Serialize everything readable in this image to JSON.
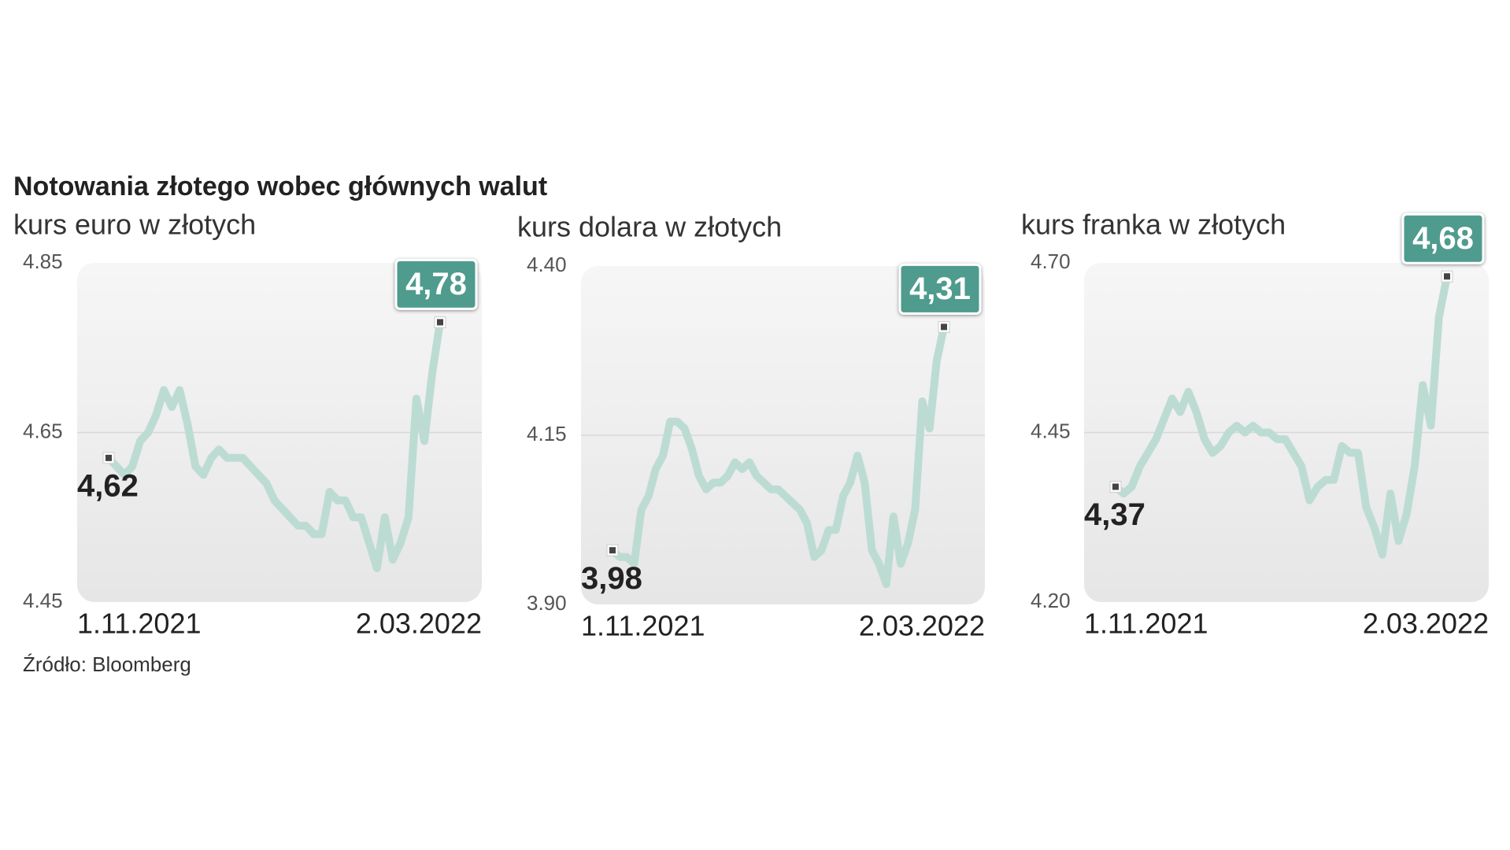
{
  "title": "Notowania złotego wobec głównych walut",
  "source": "Źródło: Bloomberg",
  "chart_data": [
    {
      "type": "line",
      "title": "kurs euro w złotych",
      "categories": [
        "1.11.2021",
        null,
        null,
        null,
        null,
        null,
        null,
        null,
        null,
        null,
        null,
        null,
        null,
        null,
        null,
        null,
        null,
        null,
        null,
        null,
        null,
        null,
        null,
        null,
        null,
        null,
        null,
        null,
        null,
        null,
        null,
        null,
        null,
        null,
        null,
        null,
        null,
        null,
        null,
        null,
        null,
        null,
        "2.03.2022"
      ],
      "values": [
        4.62,
        4.61,
        4.6,
        4.61,
        4.64,
        4.65,
        4.67,
        4.7,
        4.68,
        4.7,
        4.66,
        4.61,
        4.6,
        4.62,
        4.63,
        4.62,
        4.62,
        4.62,
        4.61,
        4.6,
        4.59,
        4.57,
        4.56,
        4.55,
        4.54,
        4.54,
        4.53,
        4.53,
        4.58,
        4.57,
        4.57,
        4.55,
        4.55,
        4.52,
        4.49,
        4.55,
        4.5,
        4.52,
        4.55,
        4.69,
        4.64,
        4.72,
        4.78
      ],
      "value_labels": [
        "4,62",
        null,
        null,
        null,
        null,
        null,
        null,
        null,
        null,
        null,
        null,
        null,
        null,
        null,
        null,
        null,
        null,
        null,
        null,
        null,
        null,
        null,
        null,
        null,
        null,
        null,
        null,
        null,
        null,
        null,
        null,
        null,
        null,
        null,
        null,
        null,
        null,
        null,
        null,
        null,
        null,
        null,
        "4,78"
      ],
      "color": "#bcdcd3",
      "ylim": [
        4.45,
        4.85
      ],
      "yticks": [
        4.85,
        4.65,
        4.45
      ],
      "grid": true
    },
    {
      "type": "line",
      "title": "kurs dolara w złotych",
      "categories": [
        "1.11.2021",
        null,
        null,
        null,
        null,
        null,
        null,
        null,
        null,
        null,
        null,
        null,
        null,
        null,
        null,
        null,
        null,
        null,
        null,
        null,
        null,
        null,
        null,
        null,
        null,
        null,
        null,
        null,
        null,
        null,
        null,
        null,
        null,
        null,
        null,
        null,
        null,
        null,
        null,
        null,
        null,
        null,
        null,
        null,
        null,
        null,
        "2.03.2022"
      ],
      "values": [
        3.98,
        3.97,
        3.97,
        3.96,
        4.04,
        4.06,
        4.1,
        4.12,
        4.17,
        4.17,
        4.16,
        4.13,
        4.09,
        4.07,
        4.08,
        4.08,
        4.09,
        4.11,
        4.1,
        4.11,
        4.09,
        4.08,
        4.07,
        4.07,
        4.06,
        4.05,
        4.04,
        4.02,
        3.97,
        3.98,
        4.01,
        4.01,
        4.06,
        4.08,
        4.12,
        4.08,
        3.98,
        3.96,
        3.93,
        4.03,
        3.96,
        3.99,
        4.04,
        4.2,
        4.16,
        4.26,
        4.31
      ],
      "value_labels": [
        "3,98",
        null,
        null,
        null,
        null,
        null,
        null,
        null,
        null,
        null,
        null,
        null,
        null,
        null,
        null,
        null,
        null,
        null,
        null,
        null,
        null,
        null,
        null,
        null,
        null,
        null,
        null,
        null,
        null,
        null,
        null,
        null,
        null,
        null,
        null,
        null,
        null,
        null,
        null,
        null,
        null,
        null,
        null,
        null,
        null,
        null,
        "4,31"
      ],
      "color": "#bcdcd3",
      "ylim": [
        3.9,
        4.4
      ],
      "yticks": [
        {
          "value": 4.4,
          "label": "4.40"
        },
        4.15,
        {
          "value": 3.9,
          "label": "3.90"
        }
      ],
      "grid": true
    },
    {
      "type": "line",
      "title": "kurs franka w złotych",
      "categories": [
        "1.11.2021",
        null,
        null,
        null,
        null,
        null,
        null,
        null,
        null,
        null,
        null,
        null,
        null,
        null,
        null,
        null,
        null,
        null,
        null,
        null,
        null,
        null,
        null,
        null,
        null,
        null,
        null,
        null,
        null,
        null,
        null,
        null,
        null,
        null,
        null,
        null,
        null,
        null,
        null,
        null,
        null,
        "2.03.2022"
      ],
      "values": [
        4.37,
        4.36,
        4.37,
        4.4,
        4.42,
        4.44,
        4.47,
        4.5,
        4.48,
        4.51,
        4.48,
        4.44,
        4.42,
        4.43,
        4.45,
        4.46,
        4.45,
        4.46,
        4.45,
        4.45,
        4.44,
        4.44,
        4.42,
        4.4,
        4.35,
        4.37,
        4.38,
        4.38,
        4.43,
        4.42,
        4.42,
        4.34,
        4.31,
        4.27,
        4.36,
        4.29,
        4.33,
        4.4,
        4.52,
        4.46,
        4.62,
        4.68
      ],
      "value_labels": [
        "4,37",
        null,
        null,
        null,
        null,
        null,
        null,
        null,
        null,
        null,
        null,
        null,
        null,
        null,
        null,
        null,
        null,
        null,
        null,
        null,
        null,
        null,
        null,
        null,
        null,
        null,
        null,
        null,
        null,
        null,
        null,
        null,
        null,
        null,
        null,
        null,
        null,
        null,
        null,
        null,
        null,
        "4,68"
      ],
      "color": "#bcdcd3",
      "ylim": [
        4.2,
        4.7
      ],
      "yticks": [
        {
          "value": 4.7,
          "label": "4.70"
        },
        4.45,
        {
          "value": 4.2,
          "label": "4.20"
        }
      ],
      "grid": true
    }
  ]
}
